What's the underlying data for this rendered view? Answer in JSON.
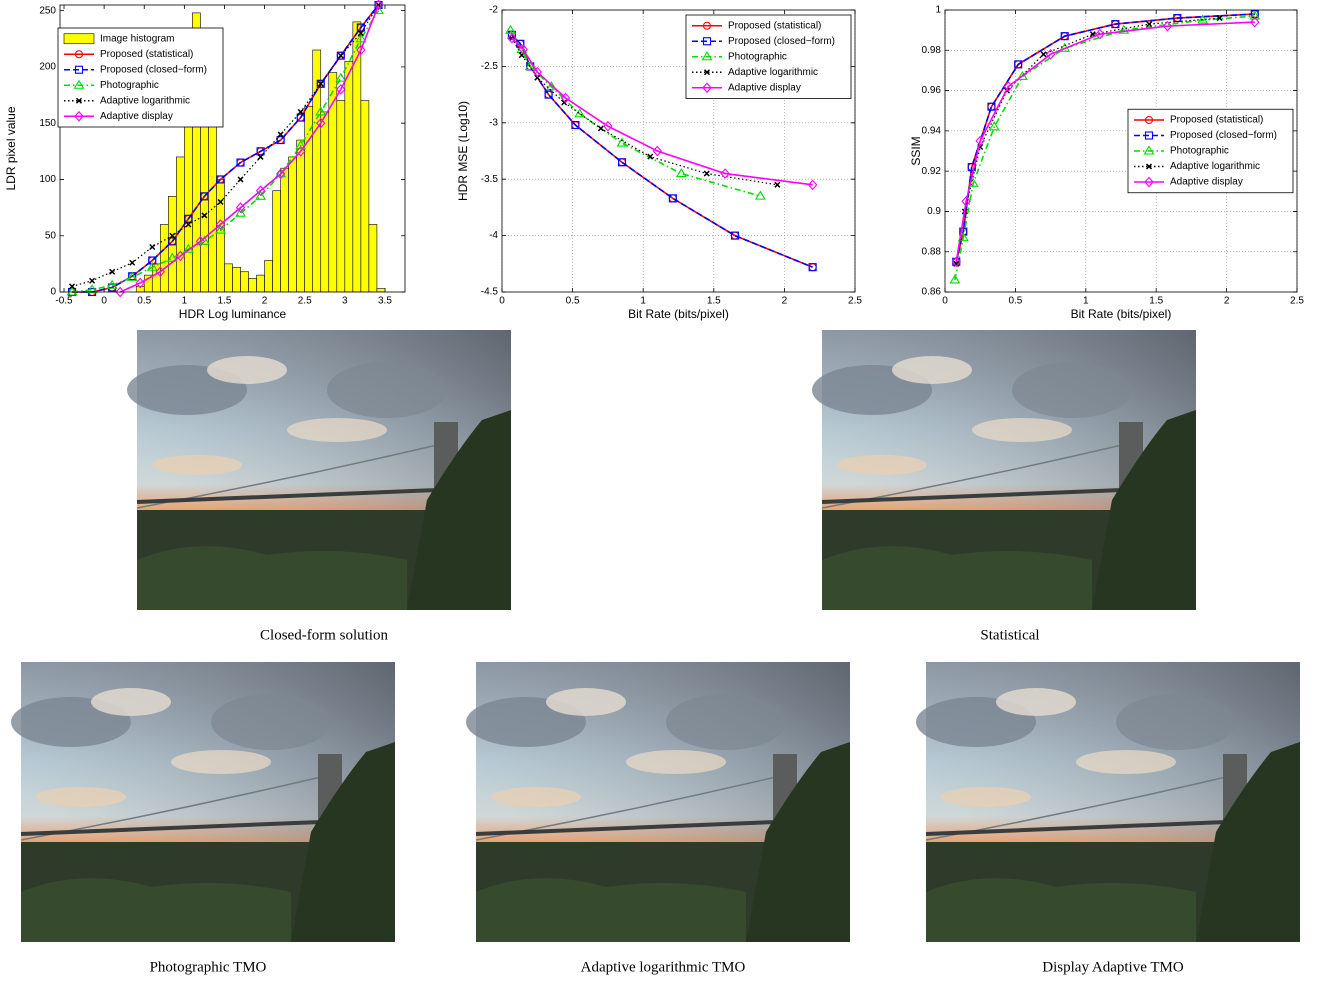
{
  "chart_data": [
    {
      "type": "line",
      "xlabel": "HDR Log luminance",
      "ylabel": "LDR pixel value",
      "xlim": [
        -0.55,
        3.75
      ],
      "ylim": [
        0,
        255
      ],
      "xticks": [
        -0.5,
        0,
        0.5,
        1,
        1.5,
        2,
        2.5,
        3,
        3.5
      ],
      "yticks": [
        0,
        50,
        100,
        150,
        200,
        250
      ],
      "grid": false,
      "legend": "upper left",
      "histogram": {
        "name": "Image histogram",
        "color": "#ffff00",
        "bins": [
          0.4,
          0.5,
          0.6,
          0.7,
          0.8,
          0.9,
          1.0,
          1.1,
          1.2,
          1.3,
          1.4,
          1.5,
          1.6,
          1.7,
          1.8,
          1.9,
          2.0,
          2.1,
          2.2,
          2.3,
          2.4,
          2.5,
          2.6,
          2.7,
          2.8,
          2.9,
          3.0,
          3.1,
          3.2,
          3.3,
          3.4,
          3.5
        ],
        "counts": [
          5,
          15,
          25,
          60,
          85,
          120,
          165,
          248,
          170,
          150,
          100,
          25,
          22,
          18,
          12,
          15,
          28,
          90,
          110,
          120,
          135,
          165,
          215,
          160,
          195,
          170,
          205,
          240,
          170,
          60,
          3
        ]
      },
      "series": [
        {
          "name": "Proposed (statistical)",
          "color": "#ff0000",
          "marker": "circle",
          "linestyle": "solid",
          "x": [
            -0.4,
            -0.15,
            0.1,
            0.35,
            0.6,
            0.85,
            1.05,
            1.25,
            1.45,
            1.7,
            1.95,
            2.2,
            2.45,
            2.7,
            2.95,
            3.2,
            3.42
          ],
          "values": [
            0,
            0,
            4,
            14,
            28,
            45,
            65,
            85,
            100,
            115,
            125,
            135,
            155,
            185,
            210,
            235,
            255
          ]
        },
        {
          "name": "Proposed (closed−form)",
          "color": "#0000ff",
          "marker": "square",
          "linestyle": "dashed",
          "x": [
            -0.4,
            -0.15,
            0.1,
            0.35,
            0.6,
            0.85,
            1.05,
            1.25,
            1.45,
            1.7,
            1.95,
            2.2,
            2.45,
            2.7,
            2.95,
            3.2,
            3.42
          ],
          "values": [
            0,
            0,
            4,
            14,
            28,
            45,
            65,
            85,
            100,
            115,
            125,
            135,
            155,
            185,
            210,
            235,
            255
          ]
        },
        {
          "name": "Photographic",
          "color": "#00dd00",
          "marker": "triangle",
          "linestyle": "dashdot",
          "x": [
            -0.4,
            -0.15,
            0.1,
            0.35,
            0.6,
            0.85,
            1.05,
            1.25,
            1.45,
            1.7,
            1.95,
            2.2,
            2.45,
            2.7,
            2.95,
            3.2,
            3.42
          ],
          "values": [
            0,
            2,
            6,
            13,
            22,
            30,
            38,
            45,
            55,
            70,
            85,
            105,
            130,
            160,
            190,
            225,
            250
          ]
        },
        {
          "name": "Adaptive logarithmic",
          "color": "#000000",
          "marker": "x",
          "linestyle": "dotted",
          "x": [
            -0.4,
            -0.15,
            0.1,
            0.35,
            0.6,
            0.85,
            1.05,
            1.25,
            1.45,
            1.7,
            1.95,
            2.2,
            2.45,
            2.7,
            2.95,
            3.2,
            3.42
          ],
          "values": [
            5,
            10,
            18,
            26,
            40,
            50,
            60,
            68,
            80,
            100,
            120,
            140,
            160,
            185,
            210,
            230,
            255
          ]
        },
        {
          "name": "Adaptive display",
          "color": "#ff00ff",
          "marker": "diamond",
          "linestyle": "solid",
          "x": [
            0.2,
            0.45,
            0.7,
            0.95,
            1.2,
            1.45,
            1.7,
            1.95,
            2.2,
            2.45,
            2.7,
            2.95,
            3.2,
            3.42
          ],
          "values": [
            0,
            8,
            18,
            32,
            45,
            60,
            75,
            90,
            105,
            125,
            150,
            180,
            215,
            255
          ]
        }
      ]
    },
    {
      "type": "line",
      "xlabel": "Bit Rate (bits/pixel)",
      "ylabel": "HDR MSE (Log10)",
      "xlim": [
        0,
        2.5
      ],
      "ylim": [
        -4.5,
        -2
      ],
      "xticks": [
        0,
        0.5,
        1,
        1.5,
        2,
        2.5
      ],
      "yticks": [
        -4.5,
        -4,
        -3.5,
        -3,
        -2.5,
        -2
      ],
      "grid": true,
      "legend": "upper right",
      "series": [
        {
          "name": "Proposed (statistical)",
          "color": "#ff0000",
          "marker": "circle",
          "linestyle": "solid",
          "x": [
            0.07,
            0.13,
            0.2,
            0.33,
            0.52,
            0.85,
            1.21,
            1.65,
            2.2
          ],
          "values": [
            -2.22,
            -2.3,
            -2.5,
            -2.75,
            -3.02,
            -3.35,
            -3.67,
            -4.0,
            -4.28
          ]
        },
        {
          "name": "Proposed (closed−form)",
          "color": "#0000ff",
          "marker": "square",
          "linestyle": "dashed",
          "x": [
            0.07,
            0.13,
            0.2,
            0.33,
            0.52,
            0.85,
            1.21,
            1.65,
            2.2
          ],
          "values": [
            -2.22,
            -2.3,
            -2.5,
            -2.75,
            -3.02,
            -3.35,
            -3.67,
            -4.0,
            -4.28
          ]
        },
        {
          "name": "Photographic",
          "color": "#00dd00",
          "marker": "triangle",
          "linestyle": "dashdot",
          "x": [
            0.06,
            0.14,
            0.2,
            0.35,
            0.55,
            0.85,
            1.27,
            1.83
          ],
          "values": [
            -2.18,
            -2.35,
            -2.5,
            -2.68,
            -2.92,
            -3.18,
            -3.45,
            -3.65
          ]
        },
        {
          "name": "Adaptive logarithmic",
          "color": "#000000",
          "marker": "x",
          "linestyle": "dotted",
          "x": [
            0.07,
            0.14,
            0.25,
            0.44,
            0.7,
            1.05,
            1.45,
            1.95
          ],
          "values": [
            -2.25,
            -2.4,
            -2.6,
            -2.82,
            -3.05,
            -3.3,
            -3.45,
            -3.55
          ]
        },
        {
          "name": "Adaptive display",
          "color": "#ff00ff",
          "marker": "diamond",
          "linestyle": "solid",
          "x": [
            0.07,
            0.15,
            0.25,
            0.45,
            0.75,
            1.1,
            1.58,
            2.2
          ],
          "values": [
            -2.25,
            -2.35,
            -2.55,
            -2.78,
            -3.03,
            -3.25,
            -3.45,
            -3.55
          ]
        }
      ]
    },
    {
      "type": "line",
      "xlabel": "Bit Rate (bits/pixel)",
      "ylabel": "SSIM",
      "xlim": [
        0,
        2.5
      ],
      "ylim": [
        0.86,
        1
      ],
      "xticks": [
        0,
        0.5,
        1,
        1.5,
        2,
        2.5
      ],
      "yticks": [
        0.86,
        0.88,
        0.9,
        0.92,
        0.94,
        0.96,
        0.98,
        1
      ],
      "grid": true,
      "legend": "center right",
      "series": [
        {
          "name": "Proposed (statistical)",
          "color": "#ff0000",
          "marker": "circle",
          "linestyle": "solid",
          "x": [
            0.08,
            0.13,
            0.19,
            0.33,
            0.52,
            0.85,
            1.21,
            1.65,
            2.2
          ],
          "values": [
            0.875,
            0.89,
            0.922,
            0.952,
            0.973,
            0.987,
            0.993,
            0.996,
            0.998
          ]
        },
        {
          "name": "Proposed (closed−form)",
          "color": "#0000ff",
          "marker": "square",
          "linestyle": "dashed",
          "x": [
            0.08,
            0.13,
            0.19,
            0.33,
            0.52,
            0.85,
            1.21,
            1.65,
            2.2
          ],
          "values": [
            0.875,
            0.89,
            0.922,
            0.952,
            0.973,
            0.987,
            0.993,
            0.996,
            0.998
          ]
        },
        {
          "name": "Photographic",
          "color": "#00dd00",
          "marker": "triangle",
          "linestyle": "dashdot",
          "x": [
            0.07,
            0.13,
            0.2,
            0.35,
            0.55,
            0.85,
            1.27,
            1.83,
            2.2
          ],
          "values": [
            0.866,
            0.887,
            0.914,
            0.942,
            0.967,
            0.981,
            0.99,
            0.995,
            0.997
          ]
        },
        {
          "name": "Adaptive logarithmic",
          "color": "#000000",
          "marker": "x",
          "linestyle": "dotted",
          "x": [
            0.08,
            0.14,
            0.25,
            0.44,
            0.7,
            1.05,
            1.45,
            1.95
          ],
          "values": [
            0.874,
            0.9,
            0.932,
            0.96,
            0.978,
            0.988,
            0.993,
            0.996
          ]
        },
        {
          "name": "Adaptive display",
          "color": "#ff00ff",
          "marker": "diamond",
          "linestyle": "solid",
          "x": [
            0.08,
            0.15,
            0.25,
            0.45,
            0.75,
            1.1,
            1.58,
            2.2
          ],
          "values": [
            0.875,
            0.905,
            0.935,
            0.962,
            0.978,
            0.988,
            0.992,
            0.994
          ]
        }
      ]
    }
  ],
  "captions": [
    "Closed-form solution",
    "Statistical",
    "Photographic TMO",
    "Adaptive logarithmic TMO",
    "Display Adaptive TMO"
  ]
}
